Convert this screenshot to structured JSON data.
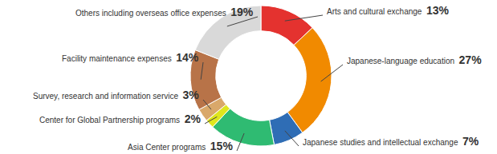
{
  "chart_data": {
    "type": "pie",
    "categories": [
      "Arts and cultural exchange",
      "Japanese-language education",
      "Japanese studies and intellectual exchange",
      "Asia Center programs",
      "Center for Global Partnership programs",
      "Survey, research and information service",
      "Facility maintenance expenses",
      "Others including overseas office expenses"
    ],
    "values": [
      13,
      27,
      7,
      15,
      2,
      3,
      14,
      19
    ],
    "value_labels": [
      "13%",
      "27%",
      "7%",
      "15%",
      "2%",
      "3%",
      "14%",
      "19%"
    ],
    "colors": [
      "#e4322f",
      "#f18a00",
      "#2f6db5",
      "#2fbb72",
      "#dfe61e",
      "#d9a86a",
      "#b87348",
      "#d9d9d9"
    ],
    "data_labels": true
  }
}
